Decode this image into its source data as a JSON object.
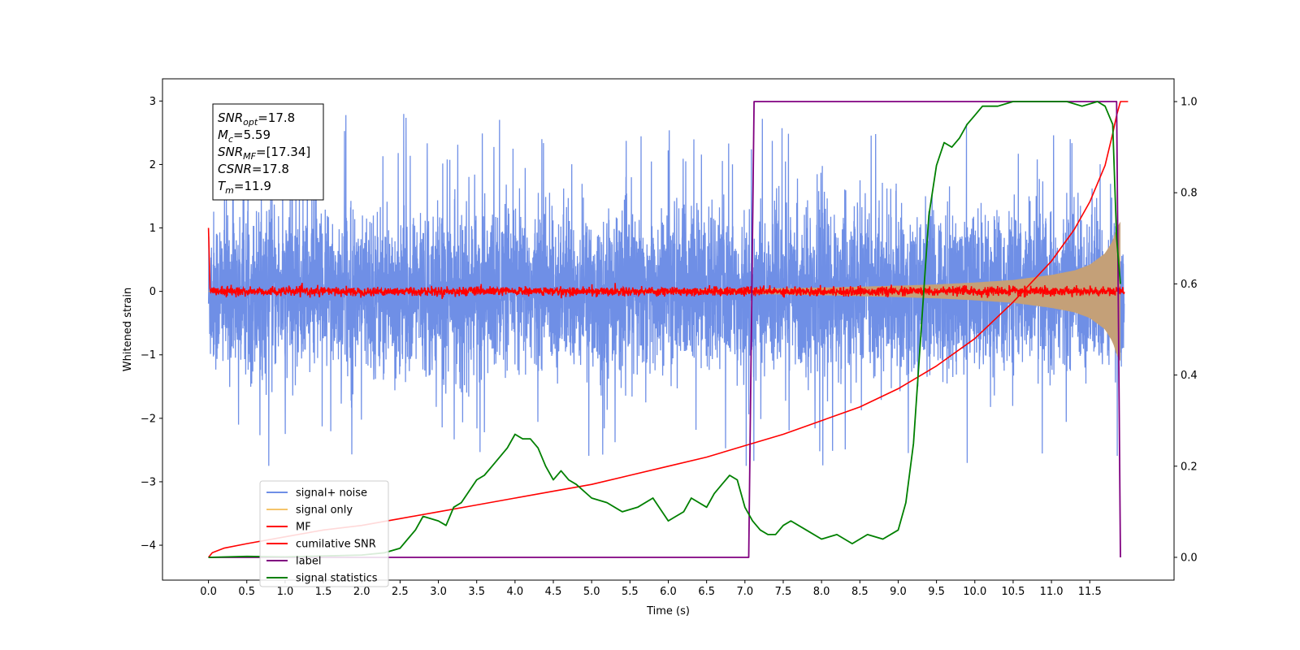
{
  "chart_data": {
    "type": "line",
    "xlabel": "Time (s)",
    "ylabel": "Whitened strain",
    "xlim": [
      -0.6,
      12.6
    ],
    "ylim": [
      -4.55,
      3.35
    ],
    "y2lim": [
      -0.05,
      1.05
    ],
    "xticks": [
      0.0,
      0.5,
      1.0,
      1.5,
      2.0,
      2.5,
      3.0,
      3.5,
      4.0,
      4.5,
      5.0,
      5.5,
      6.0,
      6.5,
      7.0,
      7.5,
      8.0,
      8.5,
      9.0,
      9.5,
      10.0,
      10.5,
      11.0,
      11.5
    ],
    "xtick_labels": [
      "0.0",
      "0.5",
      "1.0",
      "1.5",
      "2.0",
      "2.5",
      "3.0",
      "3.5",
      "4.0",
      "4.5",
      "5.0",
      "5.5",
      "6.0",
      "6.5",
      "7.0",
      "7.5",
      "8.0",
      "8.5",
      "9.0",
      "9.5",
      "10.0",
      "10.5",
      "11.0",
      "11.5"
    ],
    "yticks": [
      -4,
      -3,
      -2,
      -1,
      0,
      1,
      2,
      3
    ],
    "ytick_labels": [
      "−4",
      "−3",
      "−2",
      "−1",
      "0",
      "1",
      "2",
      "3"
    ],
    "y2ticks": [
      0.0,
      0.2,
      0.4,
      0.6,
      0.8,
      1.0
    ],
    "y2tick_labels": [
      "0.0",
      "0.2",
      "0.4",
      "0.6",
      "0.8",
      "1.0"
    ],
    "grid": false,
    "legend_position": "lower-left",
    "info_box": {
      "lines": [
        {
          "main": "SNR",
          "sub": "opt",
          "value": "=17.8"
        },
        {
          "main": "M",
          "sub": "c",
          "value": "=5.59"
        },
        {
          "main": "SNR",
          "sub": "MF",
          "value": "=[17.34]"
        },
        {
          "main": "CSNR",
          "sub": "",
          "value": "=17.8"
        },
        {
          "main": "T",
          "sub": "m",
          "value": "=11.9"
        }
      ]
    },
    "series": [
      {
        "name": "signal+ noise",
        "color": "#6f8fe6",
        "axis": "left",
        "kind": "noise",
        "envelope_typical": 0.8,
        "peak_max": 3.0,
        "peak_min": -2.75,
        "x_range": [
          0.0,
          11.95
        ]
      },
      {
        "name": "signal only",
        "color": "#f5c46a",
        "fill_color": "#c4a078",
        "axis": "left",
        "kind": "chirp",
        "x": [
          0.0,
          2.0,
          4.0,
          6.0,
          7.0,
          8.0,
          9.0,
          9.5,
          10.0,
          10.5,
          11.0,
          11.3,
          11.5,
          11.7,
          11.8,
          11.85,
          11.9
        ],
        "amplitude": [
          0.01,
          0.015,
          0.02,
          0.03,
          0.04,
          0.06,
          0.09,
          0.11,
          0.14,
          0.18,
          0.26,
          0.33,
          0.42,
          0.6,
          0.8,
          1.0,
          1.1
        ]
      },
      {
        "name": "MF",
        "color": "#ff0000",
        "axis": "left",
        "kind": "noise",
        "envelope_typical": 0.05,
        "peak_max": 0.15,
        "peak_min": -0.15,
        "x_range": [
          0.0,
          11.95
        ],
        "start_value": 1.0
      },
      {
        "name": "cumilative SNR",
        "color": "#ff0000",
        "axis": "right",
        "x": [
          0.0,
          0.05,
          0.2,
          0.5,
          1.0,
          1.5,
          2.0,
          2.5,
          3.0,
          3.5,
          4.0,
          4.5,
          5.0,
          5.5,
          6.0,
          6.5,
          7.0,
          7.5,
          8.0,
          8.5,
          9.0,
          9.5,
          10.0,
          10.5,
          11.0,
          11.3,
          11.5,
          11.7,
          11.8,
          11.85,
          11.9,
          12.0
        ],
        "y": [
          0.0,
          0.01,
          0.02,
          0.03,
          0.045,
          0.06,
          0.07,
          0.085,
          0.1,
          0.115,
          0.13,
          0.145,
          0.16,
          0.18,
          0.2,
          0.22,
          0.245,
          0.27,
          0.3,
          0.33,
          0.37,
          0.42,
          0.48,
          0.56,
          0.65,
          0.72,
          0.78,
          0.86,
          0.93,
          0.97,
          1.0,
          1.0
        ]
      },
      {
        "name": "label",
        "color": "#800080",
        "axis": "right",
        "x": [
          0.0,
          7.05,
          7.12,
          11.85,
          11.9
        ],
        "y": [
          0.0,
          0.0,
          1.0,
          1.0,
          0.0
        ]
      },
      {
        "name": "signal statistics",
        "color": "#008000",
        "axis": "right",
        "x": [
          0.0,
          0.5,
          1.0,
          1.5,
          2.0,
          2.3,
          2.5,
          2.6,
          2.7,
          2.8,
          3.0,
          3.1,
          3.2,
          3.3,
          3.5,
          3.6,
          3.7,
          3.8,
          3.9,
          4.0,
          4.1,
          4.2,
          4.3,
          4.4,
          4.5,
          4.6,
          4.7,
          4.8,
          5.0,
          5.2,
          5.4,
          5.6,
          5.8,
          6.0,
          6.1,
          6.2,
          6.3,
          6.4,
          6.5,
          6.6,
          6.7,
          6.8,
          6.9,
          7.0,
          7.1,
          7.2,
          7.3,
          7.4,
          7.5,
          7.6,
          7.8,
          8.0,
          8.2,
          8.4,
          8.6,
          8.8,
          9.0,
          9.1,
          9.2,
          9.3,
          9.4,
          9.5,
          9.6,
          9.7,
          9.8,
          9.9,
          10.0,
          10.1,
          10.3,
          10.5,
          10.8,
          11.0,
          11.2,
          11.4,
          11.6,
          11.7,
          11.8,
          11.85,
          11.9
        ],
        "y": [
          0.0,
          0.002,
          0.001,
          0.003,
          0.005,
          0.01,
          0.02,
          0.04,
          0.06,
          0.09,
          0.08,
          0.07,
          0.11,
          0.12,
          0.17,
          0.18,
          0.2,
          0.22,
          0.24,
          0.27,
          0.26,
          0.26,
          0.24,
          0.2,
          0.17,
          0.19,
          0.17,
          0.16,
          0.13,
          0.12,
          0.1,
          0.11,
          0.13,
          0.08,
          0.09,
          0.1,
          0.13,
          0.12,
          0.11,
          0.14,
          0.16,
          0.18,
          0.17,
          0.11,
          0.08,
          0.06,
          0.05,
          0.05,
          0.07,
          0.08,
          0.06,
          0.04,
          0.05,
          0.03,
          0.05,
          0.04,
          0.06,
          0.12,
          0.25,
          0.5,
          0.75,
          0.86,
          0.91,
          0.9,
          0.92,
          0.95,
          0.97,
          0.99,
          0.99,
          1.0,
          1.0,
          1.0,
          1.0,
          0.99,
          1.0,
          0.99,
          0.95,
          0.7,
          0.6
        ]
      }
    ]
  }
}
